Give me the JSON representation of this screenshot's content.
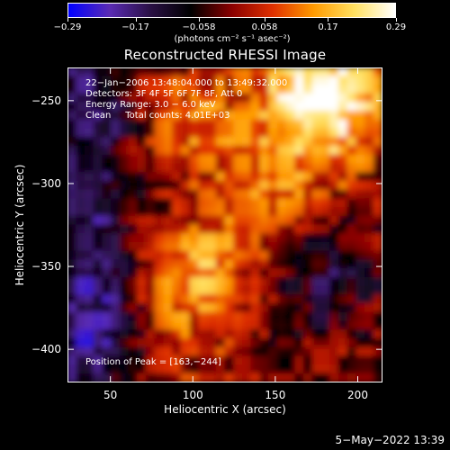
{
  "chart_data": {
    "type": "heatmap",
    "title": "Reconstructed RHESSI Image",
    "xlabel": "Heliocentric X (arcsec)",
    "ylabel": "Heliocentric Y (arcsec)",
    "xlim": [
      24,
      215
    ],
    "ylim": [
      -420,
      -230
    ],
    "x_ticks": [
      50,
      100,
      150,
      200
    ],
    "x_tick_labels": [
      "50",
      "100",
      "150",
      "200"
    ],
    "y_ticks": [
      -250,
      -300,
      -350,
      -400
    ],
    "y_tick_labels": [
      "−250",
      "−300",
      "−350",
      "−400"
    ],
    "colorbar": {
      "min": -0.29,
      "max": 0.29,
      "tick_values": [
        -0.29,
        -0.17,
        -0.058,
        0.058,
        0.17,
        0.29
      ],
      "tick_labels": [
        "−0.29",
        "−0.17",
        "−0.058",
        "0.058",
        "0.17",
        "0.29"
      ],
      "units": "(photons cm⁻² s⁻¹ asec⁻²)",
      "colormap_stops": [
        "#0000ff",
        "#5a2bb5",
        "#2a1045",
        "#000000",
        "#8a0000",
        "#e03000",
        "#ff9a00",
        "#ffe060",
        "#ffffff"
      ]
    },
    "annotations": [
      "22−Jan−2006 13:48:04.000 to 13:49:32.000",
      "Detectors: 3F 4F 5F 6F 7F 8F, Att 0",
      "Energy Range: 3.0 − 6.0 keV",
      "Clean     Total counts: 4.01E+03",
      "Position of Peak = [163,−244]"
    ],
    "peak": {
      "x": 163,
      "y": -244
    }
  },
  "footer_date": "5−May−2022 13:39"
}
